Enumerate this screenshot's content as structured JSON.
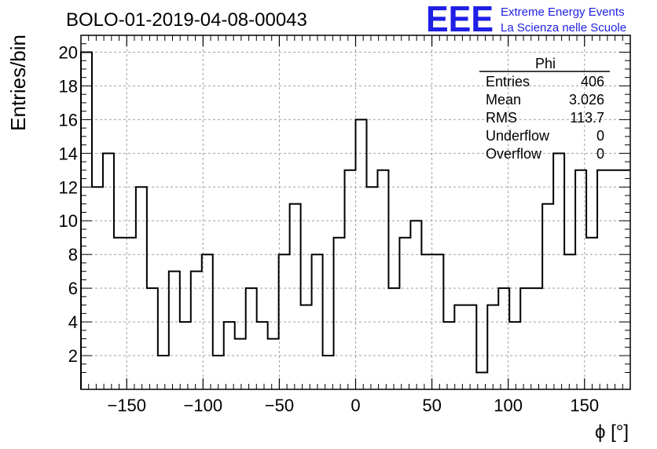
{
  "header": {
    "run_title": "BOLO-01-2019-04-08-00043",
    "logo_text": "EEE",
    "logo_line1": "Extreme Energy Events",
    "logo_line2": "La Scienza nelle Scuole"
  },
  "stats_box": {
    "title": "Phi",
    "rows": [
      {
        "label": "Entries",
        "value": "406"
      },
      {
        "label": "Mean",
        "value": "3.026"
      },
      {
        "label": "RMS",
        "value": "113.7"
      },
      {
        "label": "Underflow",
        "value": "0"
      },
      {
        "label": "Overflow",
        "value": "0"
      }
    ]
  },
  "colors": {
    "logo": "#1f1fe6",
    "line": "#000000",
    "grid": "#a0a0a0"
  },
  "chart_data": {
    "type": "histogram",
    "title": "",
    "xlabel": "ϕ [°]",
    "ylabel": "Entries/bin",
    "xlim": [
      -180,
      180
    ],
    "ylim": [
      0,
      21
    ],
    "bin_edges_start": -180,
    "bin_width": 7.2,
    "values": [
      20,
      12,
      14,
      9,
      9,
      12,
      6,
      2,
      7,
      4,
      7,
      8,
      2,
      4,
      3,
      6,
      4,
      3,
      8,
      11,
      5,
      8,
      2,
      9,
      13,
      16,
      12,
      13,
      6,
      9,
      10,
      8,
      8,
      4,
      5,
      5,
      1,
      5,
      6,
      4,
      6,
      6,
      11,
      14,
      8,
      13,
      9,
      13,
      13,
      13
    ],
    "xticks": [
      -150,
      -100,
      -50,
      0,
      50,
      100,
      150
    ],
    "xtick_labels": [
      "−150",
      "−100",
      "−50",
      "0",
      "50",
      "100",
      "150"
    ],
    "yticks": [
      2,
      4,
      6,
      8,
      10,
      12,
      14,
      16,
      18,
      20
    ],
    "ytick_labels": [
      "2",
      "4",
      "6",
      "8",
      "10",
      "12",
      "14",
      "16",
      "18",
      "20"
    ],
    "grid": true
  }
}
